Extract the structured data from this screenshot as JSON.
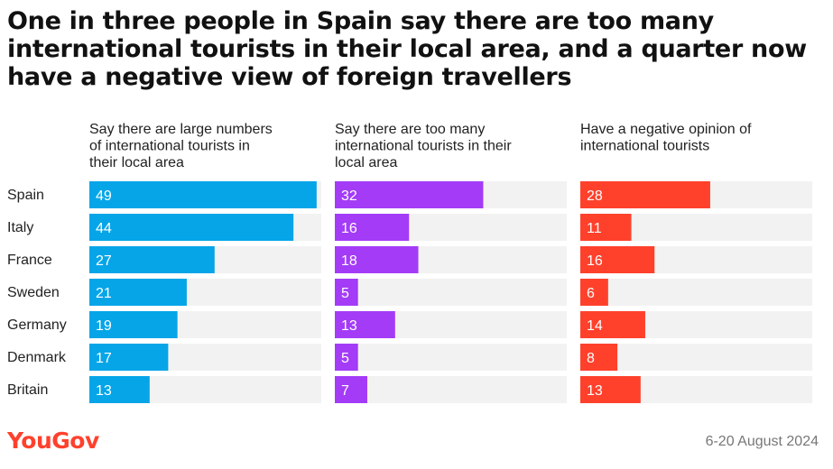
{
  "title": "One in three people in Spain say there are too many international tourists in their local area, and a quarter now have a negative view of foreign travellers",
  "brand": {
    "name": "YouGov",
    "color": "#ff412c"
  },
  "date_note": "6-20 August 2024",
  "chart_data": {
    "type": "bar",
    "orientation": "horizontal",
    "categories": [
      "Spain",
      "Italy",
      "France",
      "Sweden",
      "Germany",
      "Denmark",
      "Britain"
    ],
    "xlim": [
      0,
      50
    ],
    "grid": false,
    "panels": [
      {
        "heading": [
          "Say there are large numbers",
          "of international tourists in",
          "their local area"
        ],
        "color": "#06a5e8",
        "values": [
          49,
          44,
          27,
          21,
          19,
          17,
          13
        ]
      },
      {
        "heading": [
          "Say there are too many",
          "international tourists in their",
          "local area"
        ],
        "color": "#a43cf7",
        "values": [
          32,
          16,
          18,
          5,
          13,
          5,
          7
        ]
      },
      {
        "heading": [
          "Have a negative opinion of",
          "international tourists"
        ],
        "color": "#ff412c",
        "values": [
          28,
          11,
          16,
          6,
          14,
          8,
          13
        ]
      }
    ]
  }
}
